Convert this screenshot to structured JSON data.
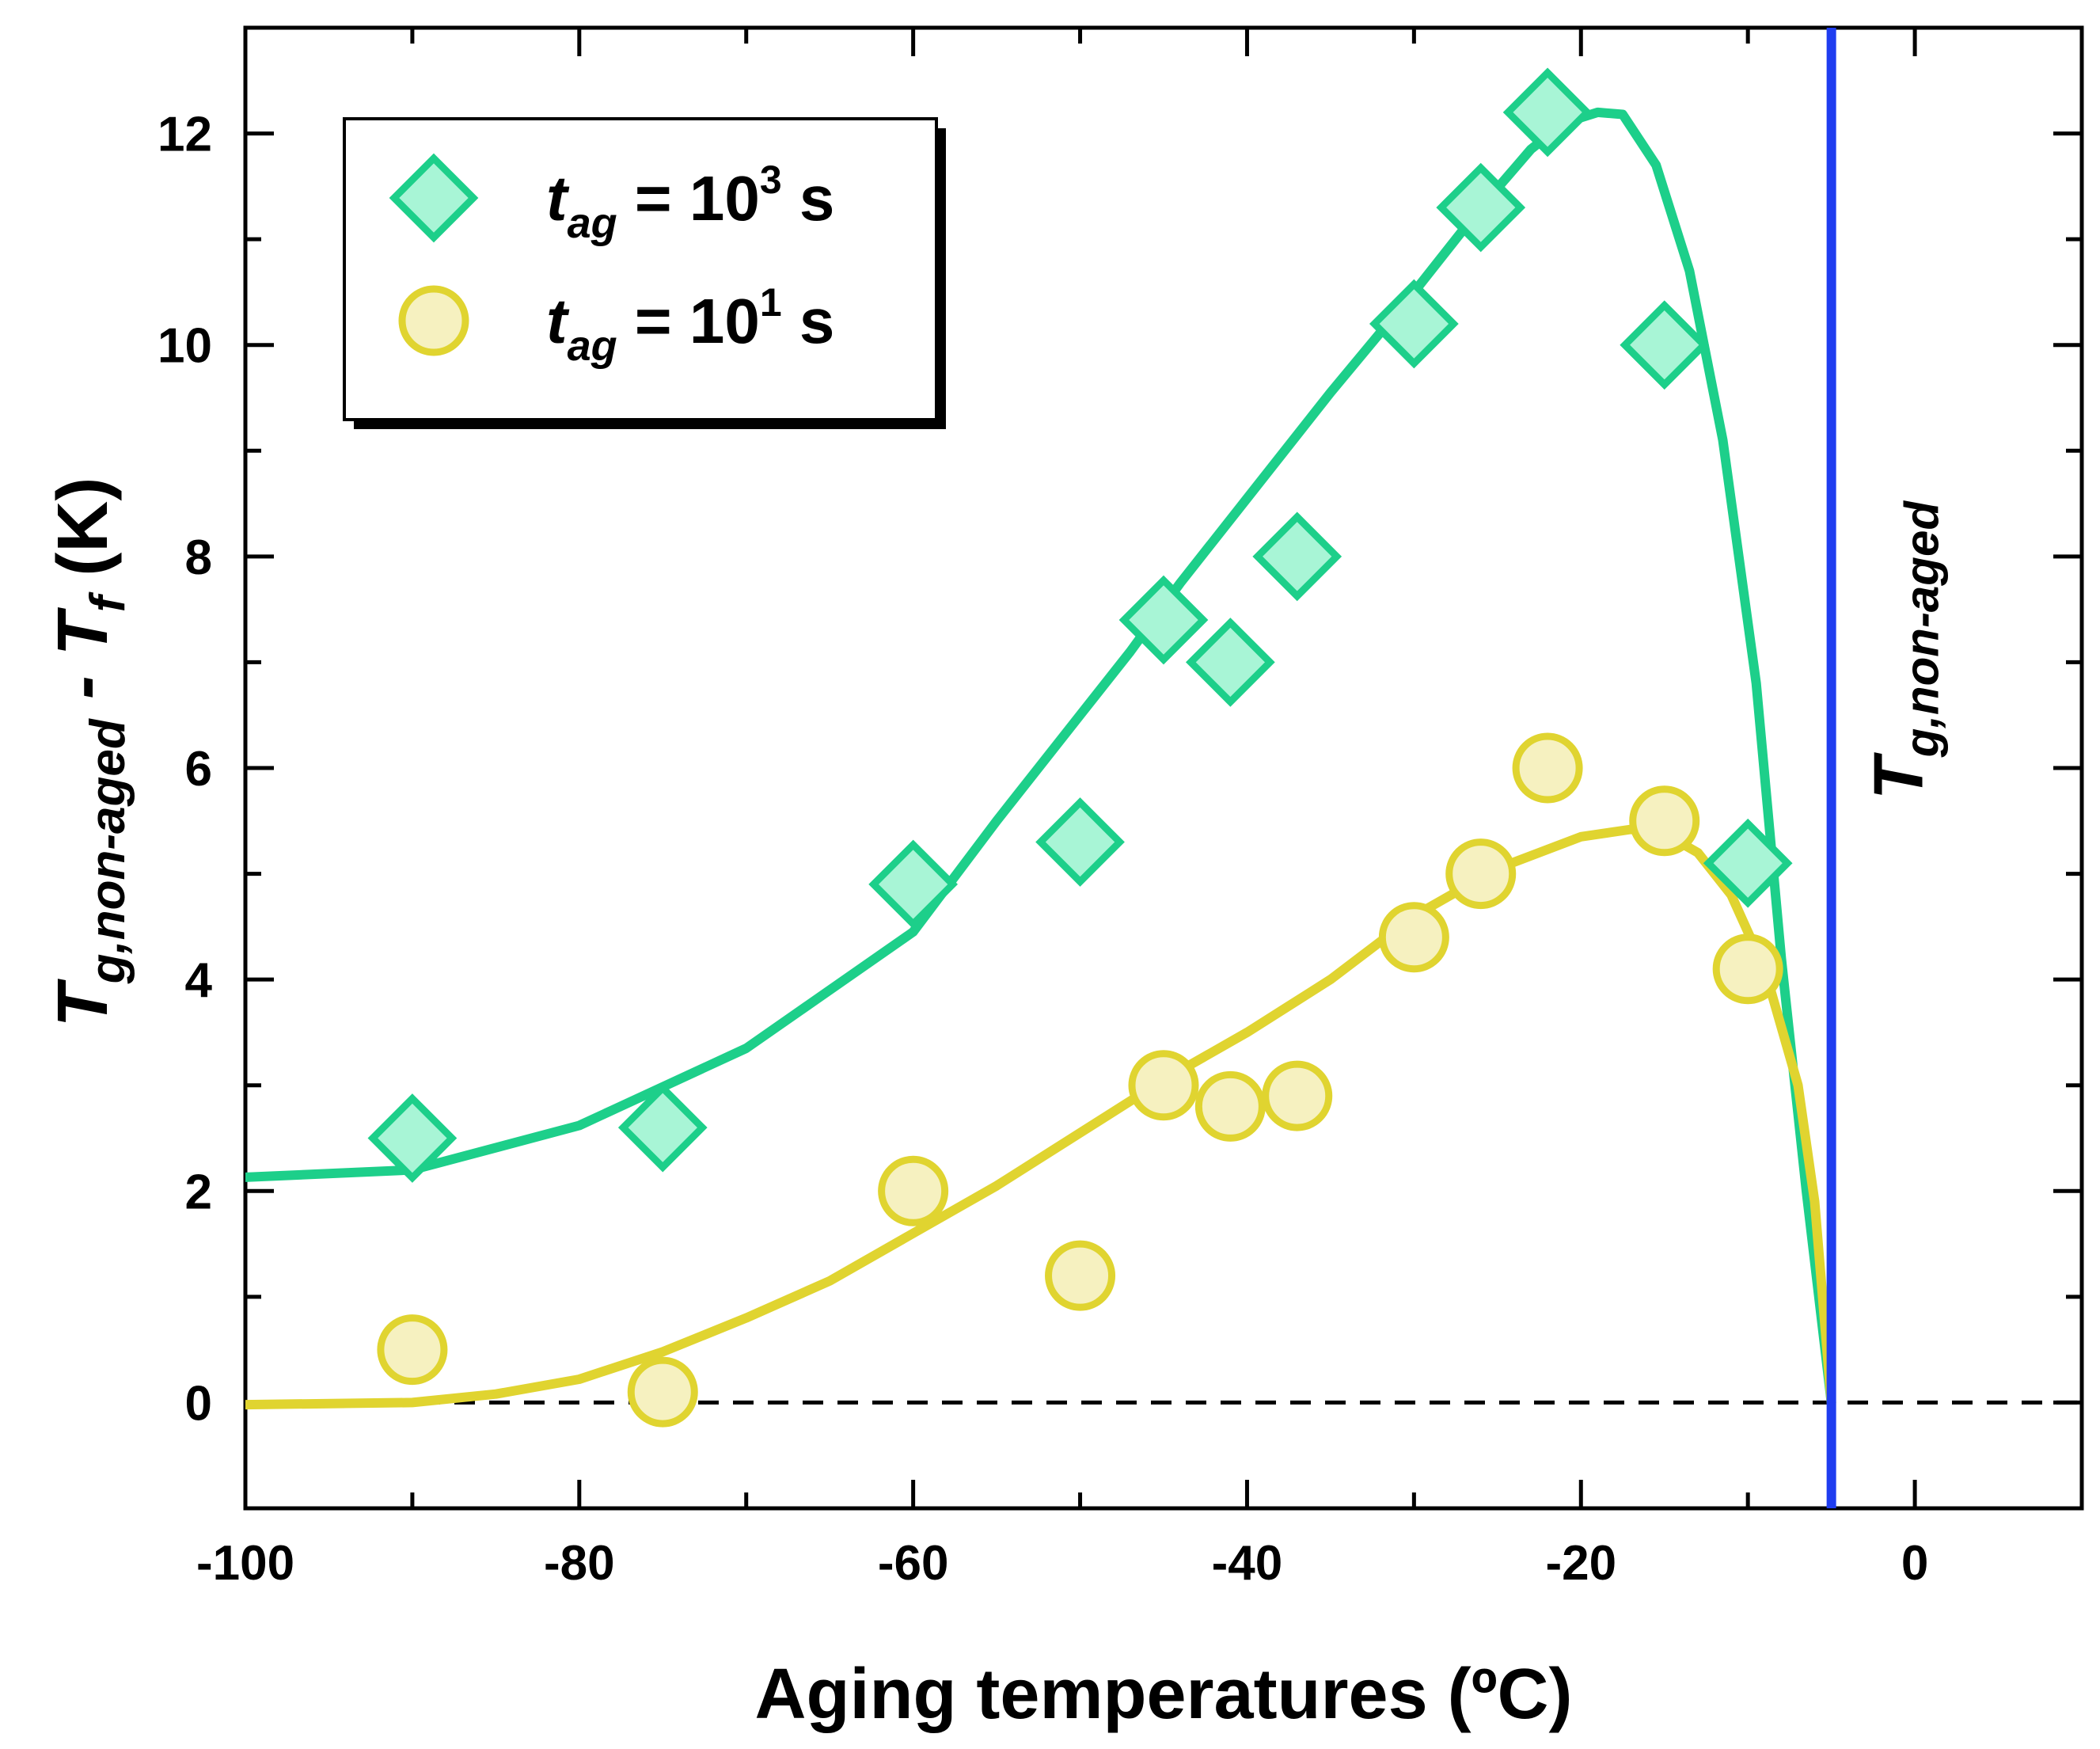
{
  "chart_data": {
    "type": "scatter",
    "title": "",
    "xlabel": "Aging temperatures (ºC)",
    "ylabel": {
      "main": "T",
      "sub": "g,non-aged",
      "mid": " - T",
      "sub2": "f",
      "end": " (K)"
    },
    "xlim": [
      -100,
      10
    ],
    "ylim": [
      -1,
      13
    ],
    "x_ticks": [
      -100,
      -80,
      -60,
      -40,
      -20,
      0
    ],
    "x_tick_labels": [
      "-100",
      "-80",
      "-60",
      "-40",
      "-20",
      "0"
    ],
    "y_ticks": [
      0,
      2,
      4,
      6,
      8,
      10,
      12
    ],
    "y_tick_labels": [
      "0",
      "2",
      "4",
      "6",
      "8",
      "10",
      "12"
    ],
    "series": [
      {
        "name": "t_ag = 10^3 s",
        "legend": {
          "main": "t",
          "sub": "ag",
          "eq": " = 10",
          "sup": "3",
          "unit": " s"
        },
        "marker": "diamond",
        "color": "#1dcf8a",
        "fill": "#a8f5d6",
        "x": [
          -90,
          -75,
          -60,
          -50,
          -45,
          -41,
          -37,
          -30,
          -26,
          -22,
          -15,
          -10
        ],
        "y": [
          2.5,
          2.6,
          4.9,
          5.3,
          7.4,
          7.0,
          8.0,
          10.2,
          11.3,
          12.2,
          10.0,
          5.1
        ],
        "fit": {
          "x": [
            -100,
            -90,
            -80,
            -70,
            -60,
            -55,
            -50,
            -47,
            -44,
            -40,
            -35,
            -30,
            -26,
            -23,
            -21,
            -19,
            -17.5,
            -15.5,
            -13.5,
            -11.5,
            -9.5,
            -8,
            -6.5,
            -5
          ],
          "y": [
            2.13,
            2.2,
            2.62,
            3.35,
            4.45,
            5.5,
            6.5,
            7.1,
            7.75,
            8.55,
            9.55,
            10.5,
            11.3,
            11.85,
            12.1,
            12.2,
            12.18,
            11.7,
            10.7,
            9.1,
            6.8,
            4.2,
            2.0,
            0.0
          ]
        }
      },
      {
        "name": "t_ag = 10^1 s",
        "legend": {
          "main": "t",
          "sub": "ag",
          "eq": " = 10",
          "sup": "1",
          "unit": " s"
        },
        "marker": "circle",
        "color": "#e0d430",
        "fill": "#f6f1c0",
        "x": [
          -90,
          -75,
          -60,
          -50,
          -45,
          -41,
          -37,
          -30,
          -26,
          -22,
          -15,
          -10
        ],
        "y": [
          0.5,
          0.1,
          2.0,
          1.2,
          3.0,
          2.8,
          2.9,
          4.4,
          5.0,
          6.0,
          5.5,
          4.1
        ],
        "fit": {
          "x": [
            -100,
            -90,
            -85,
            -80,
            -75,
            -70,
            -65,
            -60,
            -55,
            -50,
            -45,
            -40,
            -35,
            -30,
            -25,
            -20,
            -17,
            -15,
            -13,
            -11,
            -9,
            -7,
            -6,
            -5
          ],
          "y": [
            -0.02,
            0.0,
            0.08,
            0.22,
            0.48,
            0.8,
            1.15,
            1.6,
            2.05,
            2.55,
            3.05,
            3.5,
            4.0,
            4.6,
            5.05,
            5.35,
            5.42,
            5.38,
            5.2,
            4.8,
            4.1,
            3.0,
            1.9,
            0.0
          ]
        }
      }
    ],
    "annotations": [
      {
        "type": "hline",
        "y": 0,
        "style": "dashed",
        "color": "#000000"
      },
      {
        "type": "vline",
        "x": -5,
        "color": "#1f3df0",
        "label": {
          "main": "T",
          "sub": "g,non-aged"
        }
      }
    ],
    "legend_position": "top-left"
  }
}
